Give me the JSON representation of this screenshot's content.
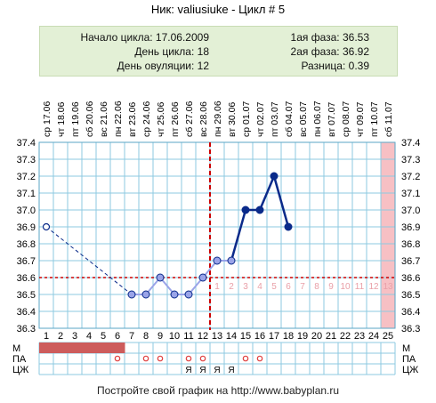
{
  "header": {
    "title": "Ник: valiusiuke - Цикл # 5"
  },
  "info": {
    "cycle_start": "Начало цикла: 17.06.2009",
    "cycle_day": "День цикла: 18",
    "ovulation_day": "День овуляции: 12",
    "phase1": "1ая фаза: 36.53",
    "phase2": "2ая фаза: 36.92",
    "difference": "Разница: 0.39"
  },
  "footer": {
    "text": "Постройте свой график на http://www.babyplan.ru"
  },
  "colors": {
    "grid": "#8ecae0",
    "line_main": "#0a2a8a",
    "line_light": "#9aa4e8",
    "ovulation_line": "#cc0000",
    "menses": "#cd5c5c",
    "pink_day": "#f7c0c4",
    "circle_mark": "#e04040"
  },
  "chart_data": {
    "type": "line",
    "days": [
      1,
      2,
      3,
      4,
      5,
      6,
      7,
      8,
      9,
      10,
      11,
      12,
      13,
      14,
      15,
      16,
      17,
      18,
      19,
      20,
      21,
      22,
      23,
      24,
      25
    ],
    "weekdays": [
      "ср",
      "чт",
      "пт",
      "сб",
      "вс",
      "пн",
      "вт",
      "ср",
      "чт",
      "пт",
      "сб",
      "вс",
      "пн",
      "вт",
      "ср",
      "чт",
      "пт",
      "сб",
      "вс",
      "пн",
      "вт",
      "ср",
      "чт",
      "пт",
      "сб"
    ],
    "dates": [
      "17.06",
      "18.06",
      "19.06",
      "20.06",
      "21.06",
      "22.06",
      "23.06",
      "24.06",
      "25.06",
      "26.06",
      "27.06",
      "28.06",
      "29.06",
      "30.06",
      "01.07",
      "02.07",
      "03.07",
      "04.07",
      "05.07",
      "06.07",
      "07.07",
      "08.07",
      "09.07",
      "10.07",
      "11.07"
    ],
    "y_ticks": [
      "37.4",
      "37.3",
      "37.2",
      "37.1",
      "37.0",
      "36.9",
      "36.8",
      "36.7",
      "36.6",
      "36.5",
      "36.4",
      "36.3"
    ],
    "ylim": [
      36.3,
      37.4
    ],
    "coverline": 36.6,
    "ovulation_day": 12,
    "post_ovulation_labels": [
      "1",
      "2",
      "3",
      "4",
      "5",
      "6",
      "7",
      "8",
      "9",
      "10",
      "11",
      "12",
      "13"
    ],
    "points": [
      {
        "day": 1,
        "value": 36.9
      },
      {
        "day": 7,
        "value": 36.5
      },
      {
        "day": 8,
        "value": 36.5
      },
      {
        "day": 9,
        "value": 36.6
      },
      {
        "day": 10,
        "value": 36.5
      },
      {
        "day": 11,
        "value": 36.5
      },
      {
        "day": 12,
        "value": 36.6
      },
      {
        "day": 13,
        "value": 36.7
      },
      {
        "day": 14,
        "value": 36.7
      },
      {
        "day": 15,
        "value": 37.0
      },
      {
        "day": 16,
        "value": 37.0
      },
      {
        "day": 17,
        "value": 37.2
      },
      {
        "day": 18,
        "value": 36.9
      }
    ],
    "highlight_day": 25,
    "moon_day": 22,
    "rows": {
      "labels": [
        "М",
        "ПА",
        "ЦЖ"
      ],
      "menses_days": [
        1,
        2,
        3,
        4,
        5,
        6
      ],
      "pa_days": [
        6,
        8,
        9,
        11,
        12,
        15,
        16
      ],
      "cm_days": [
        11,
        12,
        13,
        14
      ],
      "cm_mark": "Я",
      "pa_mark": "○"
    }
  }
}
